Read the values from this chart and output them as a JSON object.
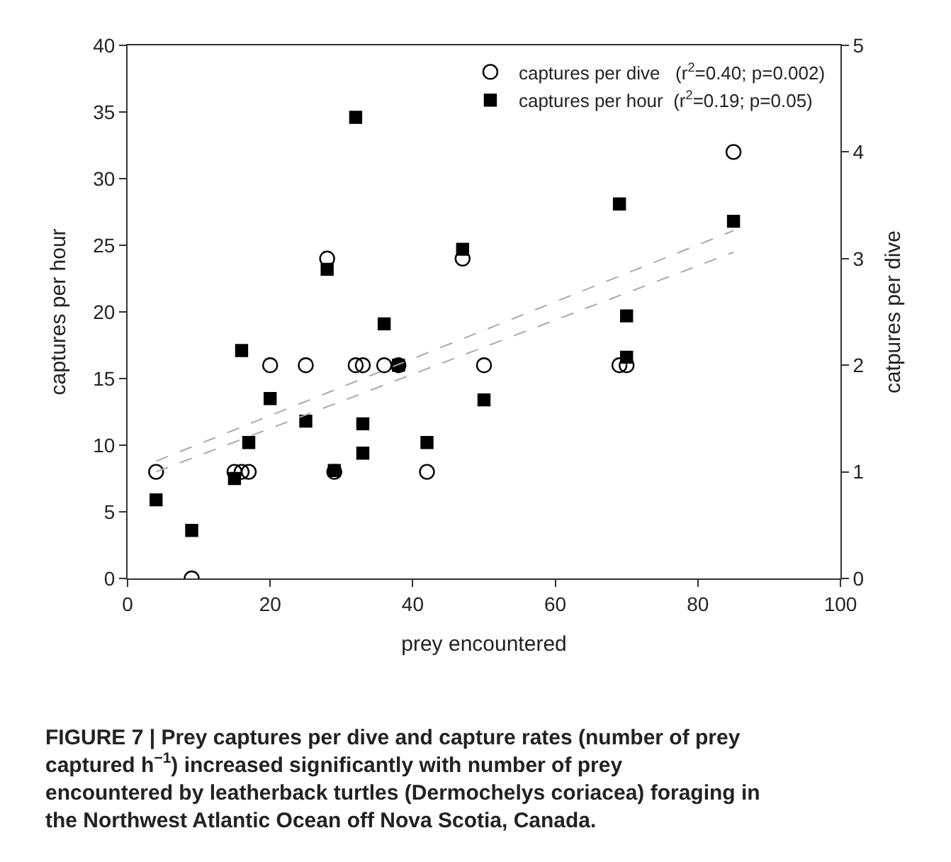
{
  "chart_data": {
    "type": "scatter",
    "xlabel": "prey encountered",
    "ylabel": "captures per hour",
    "y2label": "catpures per dive",
    "xlim": [
      0,
      100
    ],
    "xticks": [
      0,
      20,
      40,
      60,
      80,
      100
    ],
    "ylim": [
      0,
      40
    ],
    "yticks": [
      0,
      5,
      10,
      15,
      20,
      25,
      30,
      35,
      40
    ],
    "y2lim": [
      0,
      5
    ],
    "y2ticks": [
      0,
      1,
      2,
      3,
      4,
      5
    ],
    "legend": "top right",
    "series": [
      {
        "name": "captures per dive   (r$^{2}$=0.40; p=0.002)",
        "marker": "circle",
        "axis": "y2",
        "color": "#000000",
        "x": [
          4,
          9,
          15,
          16,
          17,
          20,
          25,
          28,
          29,
          32,
          33,
          36,
          38,
          42,
          47,
          50,
          69,
          70,
          85
        ],
        "values": [
          1,
          0,
          1,
          1,
          1,
          2,
          2,
          3,
          1,
          2,
          2,
          2,
          2,
          1,
          3,
          2,
          2,
          2,
          4
        ]
      },
      {
        "name": "captures per hour  (r$^{2}$=0.19; p=0.05)",
        "marker": "square",
        "axis": "y",
        "color": "#000000",
        "x": [
          4,
          9,
          15,
          16,
          17,
          20,
          25,
          28,
          29,
          32,
          33,
          33,
          36,
          38,
          42,
          47,
          50,
          69,
          70,
          70,
          85
        ],
        "values": [
          5.9,
          3.6,
          7.5,
          17.1,
          10.2,
          13.5,
          11.8,
          23.2,
          8.1,
          34.6,
          11.6,
          9.4,
          19.1,
          16,
          10.2,
          24.7,
          13.4,
          28.1,
          19.7,
          16.6,
          26.8
        ]
      },
      {
        "type": "line",
        "line_style": "dashed",
        "axis": "y",
        "color": "#aaaaaa",
        "x": [
          4,
          85
        ],
        "values": [
          8.8,
          26.1
        ]
      },
      {
        "type": "line",
        "line_style": "dashed",
        "axis": "y2",
        "color": "#aaaaaa",
        "x": [
          4,
          85
        ],
        "values": [
          1.0,
          3.06
        ]
      }
    ],
    "annotations": [
      "FIGURE 7 | Prey captures per dive and capture rates (number of prey captured h$^{−1}$) increased significantly with number of prey encountered by leatherback turtles (Dermochelys coriacea) foraging in the Northwest Atlantic Ocean off Nova Scotia, Canada."
    ]
  }
}
